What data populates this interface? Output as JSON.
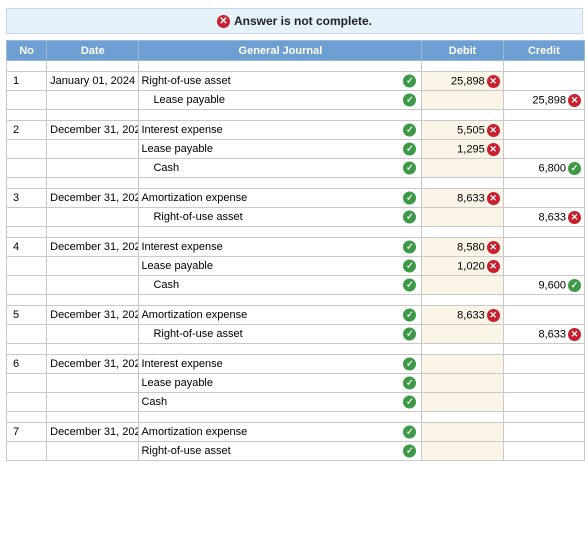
{
  "banner": {
    "icon": "error-x-icon",
    "text": "Answer is not complete."
  },
  "headers": {
    "no": "No",
    "date": "Date",
    "journal": "General Journal",
    "debit": "Debit",
    "credit": "Credit"
  },
  "entries": [
    {
      "no": "1",
      "date": "January 01, 2024",
      "lines": [
        {
          "account": "Right-of-use asset",
          "indent": false,
          "debit": "25,898",
          "debit_status": "bad",
          "credit": "",
          "credit_status": ""
        },
        {
          "account": "Lease payable",
          "indent": true,
          "debit": "",
          "debit_status": "",
          "credit": "25,898",
          "credit_status": "bad"
        }
      ]
    },
    {
      "no": "2",
      "date": "December 31, 202",
      "lines": [
        {
          "account": "Interest expense",
          "indent": false,
          "debit": "5,505",
          "debit_status": "bad",
          "credit": "",
          "credit_status": ""
        },
        {
          "account": "Lease payable",
          "indent": false,
          "debit": "1,295",
          "debit_status": "bad",
          "credit": "",
          "credit_status": ""
        },
        {
          "account": "Cash",
          "indent": true,
          "debit": "",
          "debit_status": "",
          "credit": "6,800",
          "credit_status": "ok"
        }
      ]
    },
    {
      "no": "3",
      "date": "December 31, 202",
      "lines": [
        {
          "account": "Amortization expense",
          "indent": false,
          "debit": "8,633",
          "debit_status": "bad",
          "credit": "",
          "credit_status": ""
        },
        {
          "account": "Right-of-use asset",
          "indent": true,
          "debit": "",
          "debit_status": "",
          "credit": "8,633",
          "credit_status": "bad"
        }
      ]
    },
    {
      "no": "4",
      "date": "December 31, 202",
      "lines": [
        {
          "account": "Interest expense",
          "indent": false,
          "debit": "8,580",
          "debit_status": "bad",
          "credit": "",
          "credit_status": ""
        },
        {
          "account": "Lease payable",
          "indent": false,
          "debit": "1,020",
          "debit_status": "bad",
          "credit": "",
          "credit_status": ""
        },
        {
          "account": "Cash",
          "indent": true,
          "debit": "",
          "debit_status": "",
          "credit": "9,600",
          "credit_status": "ok"
        }
      ]
    },
    {
      "no": "5",
      "date": "December 31, 202",
      "lines": [
        {
          "account": "Amortization expense",
          "indent": false,
          "debit": "8,633",
          "debit_status": "bad",
          "credit": "",
          "credit_status": ""
        },
        {
          "account": "Right-of-use asset",
          "indent": true,
          "debit": "",
          "debit_status": "",
          "credit": "8,633",
          "credit_status": "bad"
        }
      ]
    },
    {
      "no": "6",
      "date": "December 31, 202",
      "lines": [
        {
          "account": "Interest expense",
          "indent": false,
          "debit": "",
          "debit_status": "",
          "credit": "",
          "credit_status": ""
        },
        {
          "account": "Lease payable",
          "indent": false,
          "debit": "",
          "debit_status": "",
          "credit": "",
          "credit_status": ""
        },
        {
          "account": "Cash",
          "indent": false,
          "debit": "",
          "debit_status": "",
          "credit": "",
          "credit_status": ""
        }
      ]
    },
    {
      "no": "7",
      "date": "December 31, 202",
      "lines": [
        {
          "account": "Amortization expense",
          "indent": false,
          "debit": "",
          "debit_status": "",
          "credit": "",
          "credit_status": ""
        },
        {
          "account": "Right-of-use asset",
          "indent": false,
          "debit": "",
          "debit_status": "",
          "credit": "",
          "credit_status": ""
        }
      ]
    }
  ],
  "colors": {
    "header": "#6d9fd3",
    "ok": "#3c9a47",
    "bad": "#c8202f",
    "banner_bg": "#e6f2fa"
  }
}
